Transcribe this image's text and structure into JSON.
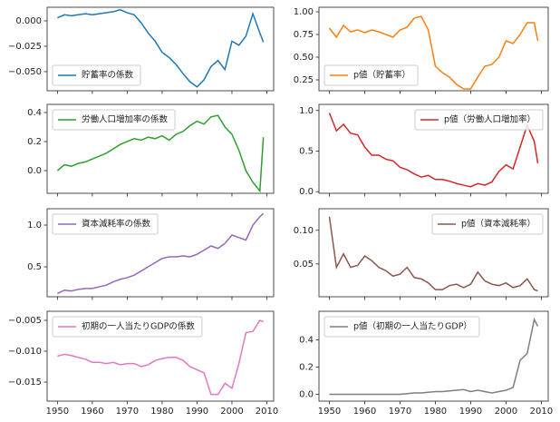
{
  "chart_data": [
    {
      "type": "line",
      "x": [
        1950,
        1952,
        1954,
        1956,
        1958,
        1960,
        1962,
        1964,
        1966,
        1968,
        1970,
        1972,
        1974,
        1976,
        1978,
        1980,
        1982,
        1984,
        1986,
        1988,
        1990,
        1992,
        1994,
        1996,
        1998,
        2000,
        2002,
        2004,
        2006,
        2008,
        2009
      ],
      "xlim": [
        1947.05,
        2011.95
      ],
      "xticks": [
        1950,
        1960,
        1970,
        1980,
        1990,
        2000,
        2010
      ],
      "series": [
        {
          "name": "貯蓄率の係数",
          "color": "#1f77b4",
          "values": [
            0.003,
            0.006,
            0.005,
            0.006,
            0.007,
            0.006,
            0.007,
            0.008,
            0.009,
            0.011,
            0.008,
            0.006,
            -0.002,
            -0.012,
            -0.02,
            -0.031,
            -0.036,
            -0.043,
            -0.052,
            -0.06,
            -0.065,
            -0.058,
            -0.045,
            -0.039,
            -0.048,
            -0.02,
            -0.024,
            -0.015,
            0.007,
            -0.012,
            -0.021
          ]
        }
      ],
      "ylim": [
        -0.0688,
        0.0134
      ],
      "yticks": [
        {
          "value": 0,
          "label": "0.000"
        },
        {
          "value": -0.025,
          "label": "−0.025"
        },
        {
          "value": -0.05,
          "label": "−0.050"
        }
      ],
      "legend": "lower left"
    },
    {
      "type": "line",
      "x": [
        1950,
        1952,
        1954,
        1956,
        1958,
        1960,
        1962,
        1964,
        1966,
        1968,
        1970,
        1972,
        1974,
        1976,
        1978,
        1980,
        1982,
        1984,
        1986,
        1988,
        1990,
        1992,
        1994,
        1996,
        1998,
        2000,
        2002,
        2004,
        2006,
        2008,
        2009
      ],
      "xlim": [
        1947.05,
        2011.95
      ],
      "xticks": [
        1950,
        1960,
        1970,
        1980,
        1990,
        2000,
        2010
      ],
      "series": [
        {
          "name": "p値（貯蓄率）",
          "color": "#ff7f0e",
          "values": [
            0.82,
            0.72,
            0.85,
            0.78,
            0.8,
            0.77,
            0.8,
            0.78,
            0.75,
            0.72,
            0.8,
            0.83,
            0.93,
            0.95,
            0.8,
            0.4,
            0.33,
            0.28,
            0.2,
            0.15,
            0.15,
            0.28,
            0.4,
            0.42,
            0.5,
            0.68,
            0.65,
            0.75,
            0.88,
            0.88,
            0.68
          ]
        }
      ],
      "ylim": [
        0.13,
        1.05
      ],
      "yticks": [
        {
          "value": 1,
          "label": "1.00"
        },
        {
          "value": 0.75,
          "label": "0.75"
        },
        {
          "value": 0.5,
          "label": "0.50"
        },
        {
          "value": 0.25,
          "label": "0.25"
        }
      ],
      "legend": "lower left"
    },
    {
      "type": "line",
      "x": [
        1950,
        1952,
        1954,
        1956,
        1958,
        1960,
        1962,
        1964,
        1966,
        1968,
        1970,
        1972,
        1974,
        1976,
        1978,
        1980,
        1982,
        1984,
        1986,
        1988,
        1990,
        1992,
        1994,
        1996,
        1998,
        2000,
        2002,
        2004,
        2006,
        2008,
        2009
      ],
      "xlim": [
        1947.05,
        2011.95
      ],
      "xticks": [
        1950,
        1960,
        1970,
        1980,
        1990,
        2000,
        2010
      ],
      "series": [
        {
          "name": "労働人口増加率の係数",
          "color": "#2ca02c",
          "values": [
            0.0,
            0.04,
            0.03,
            0.05,
            0.06,
            0.08,
            0.1,
            0.12,
            0.15,
            0.18,
            0.2,
            0.22,
            0.21,
            0.23,
            0.22,
            0.24,
            0.21,
            0.25,
            0.27,
            0.31,
            0.34,
            0.32,
            0.37,
            0.38,
            0.3,
            0.25,
            0.14,
            0.0,
            -0.08,
            -0.14,
            0.23
          ]
        }
      ],
      "ylim": [
        -0.156,
        0.456
      ],
      "yticks": [
        0.4,
        0.2,
        {
          "value": 0,
          "label": "0.0"
        }
      ],
      "legend": "upper left"
    },
    {
      "type": "line",
      "x": [
        1950,
        1952,
        1954,
        1956,
        1958,
        1960,
        1962,
        1964,
        1966,
        1968,
        1970,
        1972,
        1974,
        1976,
        1978,
        1980,
        1982,
        1984,
        1986,
        1988,
        1990,
        1992,
        1994,
        1996,
        1998,
        2000,
        2002,
        2004,
        2006,
        2008,
        2009
      ],
      "xlim": [
        1947.05,
        2011.95
      ],
      "xticks": [
        1950,
        1960,
        1970,
        1980,
        1990,
        2000,
        2010
      ],
      "series": [
        {
          "name": "p値（労働人口増加率）",
          "color": "#d62728",
          "values": [
            0.97,
            0.75,
            0.83,
            0.72,
            0.7,
            0.55,
            0.45,
            0.45,
            0.4,
            0.38,
            0.3,
            0.27,
            0.22,
            0.18,
            0.2,
            0.15,
            0.15,
            0.13,
            0.1,
            0.08,
            0.06,
            0.1,
            0.08,
            0.12,
            0.25,
            0.33,
            0.28,
            0.55,
            0.82,
            0.62,
            0.35
          ]
        }
      ],
      "ylim": [
        -0.02,
        1.076
      ],
      "yticks": [
        {
          "value": 1,
          "label": "1.0"
        },
        0.5,
        {
          "value": 0,
          "label": "0.0"
        }
      ],
      "legend": "upper right"
    },
    {
      "type": "line",
      "x": [
        1950,
        1952,
        1954,
        1956,
        1958,
        1960,
        1962,
        1964,
        1966,
        1968,
        1970,
        1972,
        1974,
        1976,
        1978,
        1980,
        1982,
        1984,
        1986,
        1988,
        1990,
        1992,
        1994,
        1996,
        1998,
        2000,
        2002,
        2004,
        2006,
        2008,
        2009
      ],
      "xlim": [
        1947.05,
        2011.95
      ],
      "xticks": [
        1950,
        1960,
        1970,
        1980,
        1990,
        2000,
        2010
      ],
      "series": [
        {
          "name": "資本減耗率の係数",
          "color": "#9467bd",
          "values": [
            0.18,
            0.22,
            0.21,
            0.23,
            0.24,
            0.24,
            0.26,
            0.28,
            0.32,
            0.35,
            0.37,
            0.4,
            0.45,
            0.5,
            0.55,
            0.6,
            0.62,
            0.62,
            0.63,
            0.62,
            0.65,
            0.7,
            0.75,
            0.72,
            0.78,
            0.88,
            0.85,
            0.82,
            1.0,
            1.1,
            1.14
          ]
        }
      ],
      "ylim": [
        0.141,
        1.196
      ],
      "yticks": [
        {
          "value": 1,
          "label": "1.0"
        },
        0.5
      ],
      "legend": "upper left"
    },
    {
      "type": "line",
      "x": [
        1950,
        1952,
        1954,
        1956,
        1958,
        1960,
        1962,
        1964,
        1966,
        1968,
        1970,
        1972,
        1974,
        1976,
        1978,
        1980,
        1982,
        1984,
        1986,
        1988,
        1990,
        1992,
        1994,
        1996,
        1998,
        2000,
        2002,
        2004,
        2006,
        2008,
        2009
      ],
      "xlim": [
        1947.05,
        2011.95
      ],
      "xticks": [
        1950,
        1960,
        1970,
        1980,
        1990,
        2000,
        2010
      ],
      "series": [
        {
          "name": "p値（資本減耗率）",
          "color": "#8c564b",
          "values": [
            0.12,
            0.045,
            0.065,
            0.045,
            0.048,
            0.062,
            0.055,
            0.045,
            0.04,
            0.032,
            0.035,
            0.045,
            0.03,
            0.028,
            0.022,
            0.012,
            0.012,
            0.018,
            0.02,
            0.015,
            0.02,
            0.038,
            0.025,
            0.02,
            0.018,
            0.022,
            0.015,
            0.018,
            0.028,
            0.012,
            0.01
          ]
        }
      ],
      "ylim": [
        0.0014,
        0.132
      ],
      "yticks": [
        {
          "value": 0.1,
          "label": "0.10"
        },
        0.05
      ],
      "legend": "upper right"
    },
    {
      "type": "line",
      "x": [
        1950,
        1952,
        1954,
        1956,
        1958,
        1960,
        1962,
        1964,
        1966,
        1968,
        1970,
        1972,
        1974,
        1976,
        1978,
        1980,
        1982,
        1984,
        1986,
        1988,
        1990,
        1992,
        1994,
        1996,
        1998,
        2000,
        2002,
        2004,
        2006,
        2008,
        2009
      ],
      "xlim": [
        1947.05,
        2011.95
      ],
      "xticks": [
        1950,
        1960,
        1970,
        1980,
        1990,
        2000,
        2010
      ],
      "series": [
        {
          "name": "初期の一人当たりGDPの係数",
          "color": "#e377c2",
          "values": [
            -0.0108,
            -0.0105,
            -0.0107,
            -0.011,
            -0.0113,
            -0.0118,
            -0.0118,
            -0.012,
            -0.0118,
            -0.0122,
            -0.012,
            -0.012,
            -0.0125,
            -0.0122,
            -0.0115,
            -0.0112,
            -0.011,
            -0.011,
            -0.0115,
            -0.0125,
            -0.013,
            -0.0135,
            -0.017,
            -0.017,
            -0.0152,
            -0.016,
            -0.012,
            -0.007,
            -0.0068,
            -0.005,
            -0.0052
          ]
        }
      ],
      "ylim": [
        -0.01809,
        -0.00353
      ],
      "yticks": [
        {
          "value": -0.005,
          "label": "−0.005"
        },
        {
          "value": -0.01,
          "label": "−0.010"
        },
        {
          "value": -0.015,
          "label": "−0.015"
        }
      ],
      "legend": "upper left"
    },
    {
      "type": "line",
      "x": [
        1950,
        1952,
        1954,
        1956,
        1958,
        1960,
        1962,
        1964,
        1966,
        1968,
        1970,
        1972,
        1974,
        1976,
        1978,
        1980,
        1982,
        1984,
        1986,
        1988,
        1990,
        1992,
        1994,
        1996,
        1998,
        2000,
        2002,
        2004,
        2006,
        2008,
        2009
      ],
      "xlim": [
        1947.05,
        2011.95
      ],
      "xticks": [
        1950,
        1960,
        1970,
        1980,
        1990,
        2000,
        2010
      ],
      "series": [
        {
          "name": "p値（初期の一人当たりGDP）",
          "color": "#7f7f7f",
          "values": [
            0,
            0,
            0,
            0,
            0,
            0,
            0,
            0,
            0,
            0,
            0,
            0.005,
            0.01,
            0.01,
            0.015,
            0.02,
            0.02,
            0.025,
            0.03,
            0.035,
            0.02,
            0.03,
            0.02,
            0.01,
            0.02,
            0.03,
            0.05,
            0.25,
            0.3,
            0.55,
            0.5
          ]
        }
      ],
      "ylim": [
        -0.05,
        0.61
      ],
      "yticks": [
        0.4,
        0.2,
        {
          "value": 0,
          "label": "0.0"
        }
      ],
      "legend": "upper left"
    }
  ]
}
